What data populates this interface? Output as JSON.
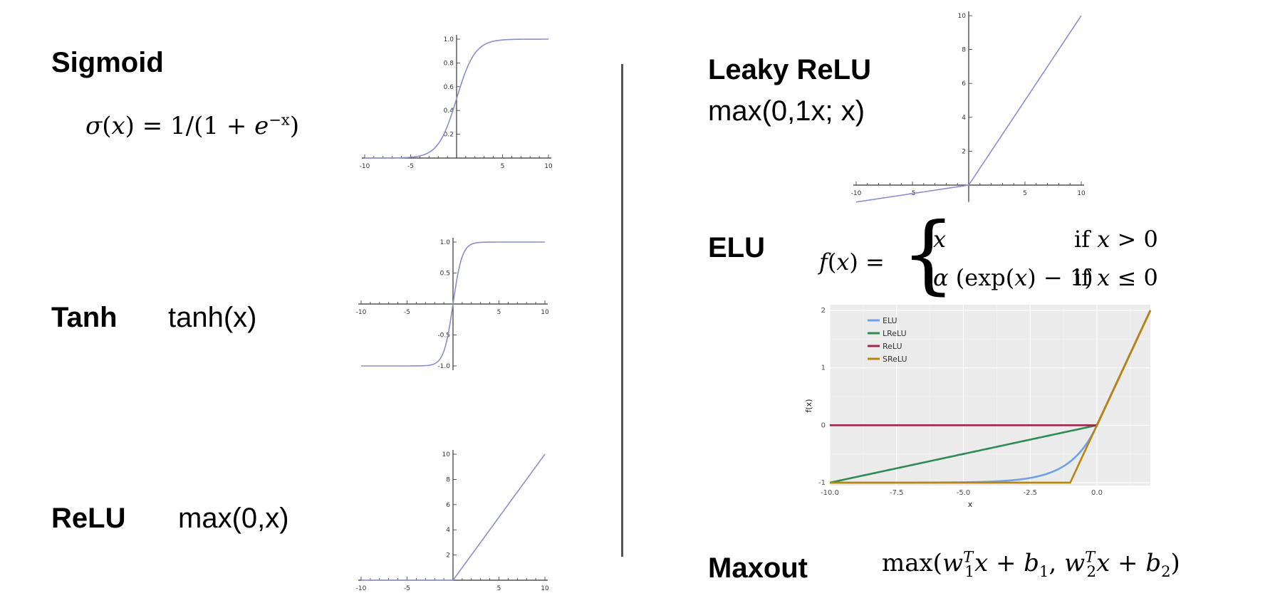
{
  "left": {
    "sigmoid": {
      "title": "Sigmoid",
      "sigma": "σ",
      "x": "x",
      "eq": " = 1/(1 + ",
      "e": "e",
      "sup": "−x",
      "close": ")"
    },
    "tanh": {
      "title": "Tanh",
      "formula": "tanh(x)"
    },
    "relu": {
      "title": "ReLU",
      "formula": "max(0,x)"
    }
  },
  "right": {
    "leaky": {
      "title": "Leaky ReLU",
      "formula": "max(0,1x; x)"
    },
    "elu": {
      "title": "ELU",
      "f": "f",
      "x": "x",
      "eq": " = ",
      "case1_val": "x",
      "case1_cond_if": "if ",
      "case1_cond_var": "x",
      "case1_cond_rel": " > 0",
      "case2_alpha": "α",
      "case2_rest": " (exp(",
      "case2_x": "x",
      "case2_end": ") − 1)",
      "case2_cond_if": "if ",
      "case2_cond_var": "x",
      "case2_cond_rel": " ≤ 0"
    },
    "maxout": {
      "title": "Maxout",
      "max": "max(",
      "w": "w",
      "T": "T",
      "one": "1",
      "two": "2",
      "x": "x",
      "plus": " + ",
      "b": "b",
      "comma": ", ",
      "close": ")"
    }
  },
  "chart_data": [
    {
      "id": "sigmoid",
      "type": "line",
      "title": "",
      "xlabel": "",
      "ylabel": "",
      "xlim": [
        -10,
        10
      ],
      "ylim": [
        0,
        1
      ],
      "xticks": [
        -10,
        -5,
        5,
        10
      ],
      "xtick_labels": [
        "-10",
        "-5",
        "5",
        "10"
      ],
      "yticks": [
        0.2,
        0.4,
        0.6,
        0.8,
        1.0
      ],
      "ytick_labels": [
        "0.2",
        "0.4",
        "0.6",
        "0.8",
        "1.0"
      ],
      "series": [
        {
          "function": "sigmoid",
          "color": "#8a8fc9"
        }
      ],
      "grid": false
    },
    {
      "id": "tanh",
      "type": "line",
      "title": "",
      "xlabel": "",
      "ylabel": "",
      "xlim": [
        -10,
        10
      ],
      "ylim": [
        -1,
        1
      ],
      "xticks": [
        -10,
        -5,
        5,
        10
      ],
      "xtick_labels": [
        "-10",
        "-5",
        "5",
        "10"
      ],
      "yticks": [
        -1.0,
        -0.5,
        0.5,
        1.0
      ],
      "ytick_labels": [
        "-1.0",
        "-0.5",
        "0.5",
        "1.0"
      ],
      "series": [
        {
          "function": "tanh",
          "color": "#8a8fc9"
        }
      ],
      "grid": false
    },
    {
      "id": "relu",
      "type": "line",
      "title": "",
      "xlabel": "",
      "ylabel": "",
      "xlim": [
        -10,
        10
      ],
      "ylim": [
        0,
        10
      ],
      "xticks": [
        -10,
        -5,
        5,
        10
      ],
      "xtick_labels": [
        "-10",
        "-5",
        "5",
        "10"
      ],
      "yticks": [
        2,
        4,
        6,
        8,
        10
      ],
      "ytick_labels": [
        "2",
        "4",
        "6",
        "8",
        "10"
      ],
      "series": [
        {
          "function": "relu",
          "color": "#8a8fc9"
        }
      ],
      "grid": false
    },
    {
      "id": "leaky",
      "type": "line",
      "title": "",
      "xlabel": "",
      "ylabel": "",
      "xlim": [
        -10,
        10
      ],
      "ylim": [
        -1,
        10
      ],
      "xticks": [
        -10,
        -5,
        5,
        10
      ],
      "xtick_labels": [
        "-10",
        "-5",
        "5",
        "10"
      ],
      "yticks": [
        2,
        4,
        6,
        8,
        10
      ],
      "ytick_labels": [
        "2",
        "4",
        "6",
        "8",
        "10"
      ],
      "series": [
        {
          "function": "leaky_relu",
          "color": "#8a8fc9"
        }
      ],
      "grid": false
    },
    {
      "id": "elu",
      "type": "line",
      "title": "",
      "xlabel": "x",
      "ylabel": "f(x)",
      "xlim": [
        -10,
        2
      ],
      "ylim": [
        -1.05,
        2.1
      ],
      "xticks": [
        -10.0,
        -7.5,
        -5.0,
        -2.5,
        0.0
      ],
      "xtick_labels": [
        "-10.0",
        "-7.5",
        "-5.0",
        "-2.5",
        "0.0"
      ],
      "yticks": [
        -1,
        0,
        1,
        2
      ],
      "ytick_labels": [
        "-1",
        "0",
        "1",
        "2"
      ],
      "grid": true,
      "legend_position": "top-left",
      "background": "#ebebeb",
      "series": [
        {
          "name": "ELU",
          "function": "elu",
          "color": "#6fa0e8"
        },
        {
          "name": "LReLU",
          "function": "lrelu",
          "color": "#2e8b57"
        },
        {
          "name": "ReLU",
          "function": "relu",
          "color": "#a0284a"
        },
        {
          "name": "SReLU",
          "function": "srelu",
          "color": "#b8860b"
        }
      ]
    }
  ]
}
